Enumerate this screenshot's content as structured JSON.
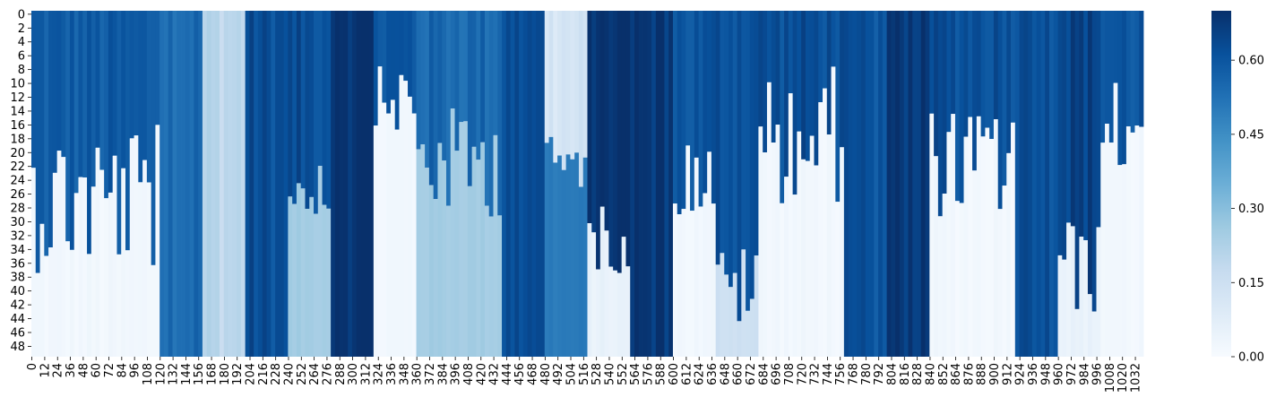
{
  "chart_data": {
    "type": "heatmap",
    "title": "",
    "xlabel": "",
    "ylabel": "",
    "n_rows": 50,
    "n_cols": 1040,
    "x_tick_labels": [
      "0",
      "12",
      "24",
      "36",
      "48",
      "60",
      "72",
      "84",
      "96",
      "108",
      "120",
      "132",
      "144",
      "156",
      "168",
      "180",
      "192",
      "204",
      "216",
      "228",
      "240",
      "252",
      "264",
      "276",
      "288",
      "300",
      "312",
      "324",
      "336",
      "348",
      "360",
      "372",
      "384",
      "396",
      "408",
      "420",
      "432",
      "444",
      "456",
      "468",
      "480",
      "492",
      "504",
      "516",
      "528",
      "540",
      "552",
      "564",
      "576",
      "588",
      "600",
      "612",
      "624",
      "636",
      "648",
      "660",
      "672",
      "684",
      "696",
      "708",
      "720",
      "732",
      "744",
      "756",
      "768",
      "780",
      "792",
      "804",
      "816",
      "828",
      "840",
      "852",
      "864",
      "876",
      "888",
      "900",
      "912",
      "924",
      "936",
      "948",
      "960",
      "972",
      "984",
      "996",
      "1008",
      "1020",
      "1032"
    ],
    "y_tick_labels": [
      "0",
      "2",
      "4",
      "6",
      "8",
      "10",
      "12",
      "14",
      "16",
      "18",
      "20",
      "22",
      "24",
      "26",
      "28",
      "30",
      "32",
      "34",
      "36",
      "38",
      "40",
      "42",
      "44",
      "46",
      "48"
    ],
    "colorbar": {
      "colormap": "Blues",
      "vmin": 0.0,
      "vmax": 0.7,
      "ticks": [
        "0.00",
        "0.15",
        "0.30",
        "0.45",
        "0.60"
      ],
      "tick_values": [
        0.0,
        0.15,
        0.3,
        0.45,
        0.6
      ]
    },
    "column_blocks": [
      {
        "x": [
          0,
          120
        ],
        "top": 0.58,
        "bottom": 0.02,
        "cutoff_row": [
          16,
          38
        ],
        "note_pattern": "decay"
      },
      {
        "x": [
          120,
          160
        ],
        "top": 0.55,
        "bottom": 0.5,
        "pattern": "uniform"
      },
      {
        "x": [
          160,
          200
        ],
        "top": 0.2,
        "bottom": 0.2,
        "pattern": "uniform"
      },
      {
        "x": [
          200,
          240
        ],
        "top": 0.62,
        "bottom": 0.6,
        "pattern": "uniform"
      },
      {
        "x": [
          240,
          280
        ],
        "top": 0.62,
        "bottom": 0.25,
        "cutoff_row": [
          20,
          30
        ],
        "pattern": "decay"
      },
      {
        "x": [
          280,
          320
        ],
        "top": 0.7,
        "bottom": 0.7,
        "pattern": "uniform"
      },
      {
        "x": [
          320,
          360
        ],
        "top": 0.6,
        "bottom": 0.02,
        "cutoff_row": [
          8,
          18
        ],
        "pattern": "decay"
      },
      {
        "x": [
          360,
          440
        ],
        "top": 0.55,
        "bottom": 0.25,
        "cutoff_row": [
          14,
          30
        ],
        "pattern": "decay"
      },
      {
        "x": [
          440,
          480
        ],
        "top": 0.62,
        "bottom": 0.62,
        "pattern": "uniform"
      },
      {
        "x": [
          480,
          520
        ],
        "top": 0.12,
        "bottom": 0.5,
        "cutoff_row": [
          18,
          26
        ],
        "pattern": "increase"
      },
      {
        "x": [
          520,
          560
        ],
        "top": 0.7,
        "bottom": 0.05,
        "cutoff_row": [
          28,
          38
        ],
        "pattern": "decay"
      },
      {
        "x": [
          560,
          600
        ],
        "top": 0.68,
        "bottom": 0.68,
        "pattern": "uniform"
      },
      {
        "x": [
          600,
          640
        ],
        "top": 0.6,
        "bottom": 0.02,
        "cutoff_row": [
          18,
          30
        ],
        "pattern": "decay"
      },
      {
        "x": [
          640,
          680
        ],
        "top": 0.62,
        "bottom": 0.15,
        "cutoff_row": [
          34,
          46
        ],
        "pattern": "decay"
      },
      {
        "x": [
          680,
          760
        ],
        "top": 0.62,
        "bottom": 0.02,
        "cutoff_row": [
          8,
          28
        ],
        "pattern": "decay"
      },
      {
        "x": [
          760,
          800
        ],
        "top": 0.6,
        "bottom": 0.6,
        "pattern": "uniform"
      },
      {
        "x": [
          800,
          840
        ],
        "top": 0.68,
        "bottom": 0.68,
        "pattern": "uniform"
      },
      {
        "x": [
          840,
          920
        ],
        "top": 0.62,
        "bottom": 0.02,
        "cutoff_row": [
          14,
          30
        ],
        "pattern": "decay"
      },
      {
        "x": [
          920,
          960
        ],
        "top": 0.62,
        "bottom": 0.62,
        "pattern": "uniform"
      },
      {
        "x": [
          960,
          1000
        ],
        "top": 0.65,
        "bottom": 0.05,
        "cutoff_row": [
          30,
          44
        ],
        "pattern": "decay"
      },
      {
        "x": [
          1000,
          1040
        ],
        "top": 0.6,
        "bottom": 0.02,
        "cutoff_row": [
          10,
          24
        ],
        "pattern": "decay"
      }
    ]
  }
}
